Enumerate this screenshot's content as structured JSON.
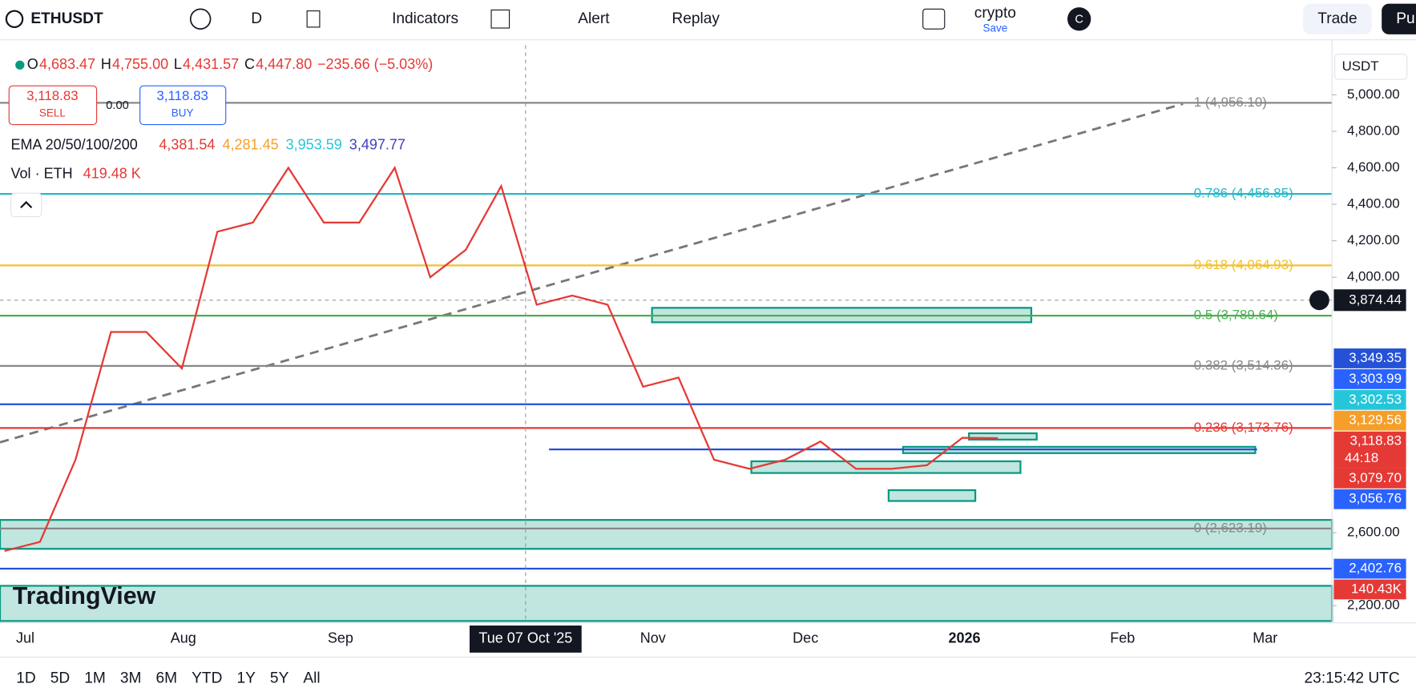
{
  "toolbar": {
    "symbol": "ETHUSDT",
    "interval": "D",
    "indicators": "Indicators",
    "alert": "Alert",
    "replay": "Replay",
    "layout_name": "crypto",
    "layout_save": "Save",
    "avatar": "C",
    "trade": "Trade",
    "publish": "Pu"
  },
  "legend": {
    "ohlc": [
      {
        "label": "O",
        "value": "4,683.47"
      },
      {
        "label": "H",
        "value": "4,755.00"
      },
      {
        "label": "L",
        "value": "4,431.57"
      },
      {
        "label": "C",
        "value": "4,447.80"
      }
    ],
    "change": "−235.66 (−5.03%)",
    "sell_price": "3,118.83",
    "sell": "SELL",
    "spread": "0.00",
    "buy_price": "3,118.83",
    "buy": "BUY",
    "ema_label": "EMA 20/50/100/200",
    "ema_values": [
      {
        "text": "4,381.54",
        "color": "#e53935"
      },
      {
        "text": "4,281.45",
        "color": "#f59f2a"
      },
      {
        "text": "3,953.59",
        "color": "#26c6da"
      },
      {
        "text": "3,497.77",
        "color": "#3f3fbf"
      }
    ],
    "vol_label": "Vol · ETH",
    "vol_value": "419.48 K"
  },
  "currency": "USDT",
  "watermark": "TradingView",
  "chart_data": {
    "type": "line",
    "color": "#e53935",
    "ylim": [
      2111,
      5272
    ],
    "yticks": [
      {
        "value": 5000,
        "label": "5,000.00"
      },
      {
        "value": 4800,
        "label": "4,800.00"
      },
      {
        "value": 4600,
        "label": "4,600.00"
      },
      {
        "value": 4400,
        "label": "4,400.00"
      },
      {
        "value": 4200,
        "label": "4,200.00"
      },
      {
        "value": 4000,
        "label": "4,000.00"
      },
      {
        "value": 2600,
        "label": "2,600.00"
      },
      {
        "value": 2200,
        "label": "2,200.00"
      }
    ],
    "values": [
      2500,
      2550,
      3000,
      3700,
      3700,
      3500,
      4250,
      4300,
      4600,
      4300,
      4300,
      4600,
      4000,
      4150,
      4500,
      3850,
      3900,
      3850,
      3400,
      3450,
      3000,
      2950,
      3000,
      3100,
      2950,
      2950,
      2970,
      3120,
      3118.83
    ],
    "levels": [
      {
        "label": "1 (4,956.10)",
        "price": 4956.1,
        "color": "#888888"
      },
      {
        "label": "0.786 (4,456.85)",
        "price": 4456.85,
        "color": "#26b8c9"
      },
      {
        "label": "0.618 (4,064.93)",
        "price": 4064.93,
        "color": "#f2c12e"
      },
      {
        "label": "0.5 (3,789.64)",
        "price": 3789.64,
        "color": "#4caf50"
      },
      {
        "label": "0.382 (3,514.36)",
        "price": 3514.36,
        "color": "#888888"
      },
      {
        "label": "0.236 (3,173.76)",
        "price": 3173.76,
        "color": "#e53935"
      },
      {
        "label": "0 (2,623.19)",
        "price": 2623.19,
        "color": "#888888"
      }
    ],
    "crosshair": {
      "price": 3874.44,
      "label": "3,874.44",
      "date": "Tue 07 Oct '25"
    },
    "lines": [
      {
        "price": 3303.99,
        "color": "#2451d6",
        "full": true
      },
      {
        "price": 3056.76,
        "color": "#2451d6",
        "full": false
      },
      {
        "price": 2402.76,
        "color": "#2451d6",
        "full": true
      }
    ],
    "tags": [
      {
        "text": "3,349.35",
        "color": "#2451d6"
      },
      {
        "text": "3,303.99",
        "color": "#2962ff"
      },
      {
        "text": "3,302.53",
        "color": "#26c6da"
      },
      {
        "text": "3,129.56",
        "color": "#f59f2a"
      },
      {
        "text": "3,118.83",
        "color": "#e53935",
        "countdown": "44:18"
      },
      {
        "text": "3,079.70",
        "color": "#e53935"
      },
      {
        "text": "3,056.76",
        "color": "#2962ff"
      }
    ],
    "low_tag": {
      "text": "2,402.76",
      "price": 2402.76,
      "color": "#2962ff"
    },
    "volume_tag": {
      "text": "140.43K",
      "color": "#e53935"
    },
    "time_labels": [
      "Jul",
      "Aug",
      "Sep",
      "Nov",
      "Dec",
      "2026",
      "Feb",
      "Mar"
    ]
  },
  "bottom": {
    "ranges": [
      "1D",
      "5D",
      "1M",
      "3M",
      "6M",
      "YTD",
      "1Y",
      "5Y",
      "All"
    ],
    "clock": "23:15:42 UTC"
  }
}
